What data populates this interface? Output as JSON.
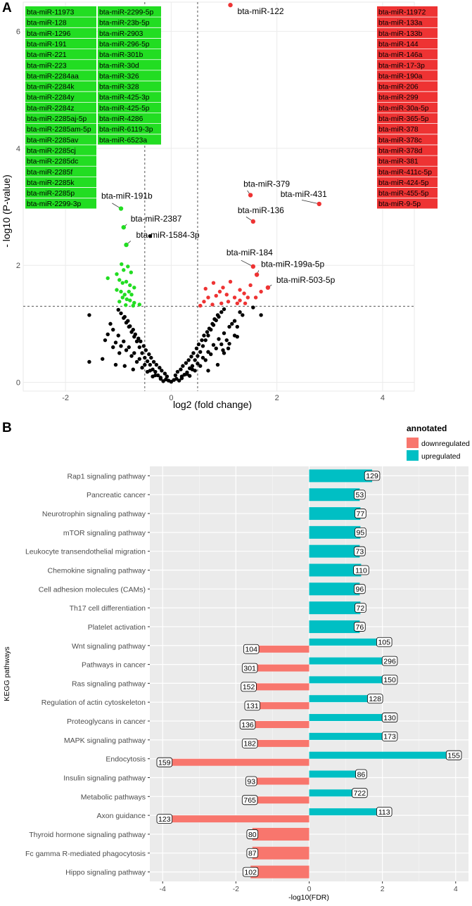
{
  "panel_a": {
    "label": "A",
    "chart_data": {
      "type": "scatter",
      "title": "",
      "xlabel": "log2 (fold change)",
      "ylabel": "- log10 (P-value)",
      "xlim": [
        -2.8,
        4.6
      ],
      "ylim": [
        -0.15,
        6.5
      ],
      "x_ticks": [
        "-2",
        "0",
        "2",
        "4"
      ],
      "x_tick_values": [
        -2,
        0,
        2,
        4
      ],
      "y_ticks": [
        "0",
        "2",
        "4",
        "6"
      ],
      "y_tick_values": [
        0,
        2,
        4,
        6
      ],
      "threshold_lines": {
        "x": [
          -0.5,
          0.5
        ],
        "y": 1.3
      },
      "colors": {
        "down": "#22dd22",
        "up": "#ee3333",
        "ns": "#000000",
        "panel_bg": "#ffffff",
        "grid": "#ebebeb"
      },
      "labeled_points": [
        {
          "name": "bta-miR-122",
          "x": 1.12,
          "y": 6.45,
          "group": "up"
        },
        {
          "name": "bta-miR-379",
          "x": 1.5,
          "y": 3.2,
          "group": "up"
        },
        {
          "name": "bta-miR-431",
          "x": 2.8,
          "y": 3.05,
          "group": "up"
        },
        {
          "name": "bta-miR-136",
          "x": 1.55,
          "y": 2.75,
          "group": "up"
        },
        {
          "name": "bta-miR-184",
          "x": 1.55,
          "y": 1.98,
          "group": "up"
        },
        {
          "name": "bta-miR-199a-5p",
          "x": 1.62,
          "y": 1.84,
          "group": "up"
        },
        {
          "name": "bta-miR-503-5p",
          "x": 1.83,
          "y": 1.62,
          "group": "up"
        },
        {
          "name": "bta-miR-191b",
          "x": -0.95,
          "y": 2.97,
          "group": "down"
        },
        {
          "name": "bta-miR-2387",
          "x": -0.9,
          "y": 2.65,
          "group": "down"
        },
        {
          "name": "bta-miR-1584-3p",
          "x": -0.85,
          "y": 2.35,
          "group": "down"
        }
      ],
      "down_points": [
        [
          -1.2,
          1.78
        ],
        [
          -1.03,
          1.85
        ],
        [
          -0.98,
          1.75
        ],
        [
          -0.92,
          1.7
        ],
        [
          -0.85,
          1.72
        ],
        [
          -0.78,
          1.66
        ],
        [
          -0.7,
          1.62
        ],
        [
          -1.03,
          1.58
        ],
        [
          -0.95,
          1.55
        ],
        [
          -0.88,
          1.5
        ],
        [
          -0.8,
          1.55
        ],
        [
          -0.75,
          1.5
        ],
        [
          -0.92,
          1.45
        ],
        [
          -0.84,
          1.42
        ],
        [
          -0.78,
          1.4
        ],
        [
          -0.7,
          1.36
        ],
        [
          -0.98,
          1.38
        ],
        [
          -0.86,
          1.32
        ],
        [
          -0.9,
          1.92
        ],
        [
          -0.82,
          1.98
        ],
        [
          -0.94,
          2.02
        ],
        [
          -0.76,
          1.88
        ],
        [
          -0.72,
          1.31
        ],
        [
          -0.6,
          1.33
        ]
      ],
      "up_points": [
        [
          0.55,
          1.31
        ],
        [
          0.62,
          1.38
        ],
        [
          0.7,
          1.45
        ],
        [
          0.78,
          1.33
        ],
        [
          0.85,
          1.48
        ],
        [
          0.92,
          1.55
        ],
        [
          0.98,
          1.62
        ],
        [
          1.05,
          1.5
        ],
        [
          1.12,
          1.72
        ],
        [
          1.2,
          1.45
        ],
        [
          1.3,
          1.58
        ],
        [
          1.38,
          1.52
        ],
        [
          1.45,
          1.45
        ],
        [
          1.25,
          1.35
        ],
        [
          1.08,
          1.38
        ],
        [
          1.5,
          1.66
        ],
        [
          1.6,
          1.45
        ],
        [
          1.7,
          1.55
        ],
        [
          0.8,
          1.7
        ],
        [
          1.3,
          1.4
        ],
        [
          0.65,
          1.6
        ],
        [
          0.95,
          1.35
        ],
        [
          1.4,
          1.35
        ]
      ],
      "ns_points": [
        [
          -0.15,
          0.02
        ],
        [
          -0.1,
          0.05
        ],
        [
          -0.05,
          0.03
        ],
        [
          0,
          0.01
        ],
        [
          0.05,
          0.04
        ],
        [
          0.1,
          0.06
        ],
        [
          0.15,
          0.03
        ],
        [
          -0.2,
          0.08
        ],
        [
          0.2,
          0.1
        ],
        [
          -0.25,
          0.12
        ],
        [
          0.25,
          0.13
        ],
        [
          -0.3,
          0.18
        ],
        [
          0.3,
          0.17
        ],
        [
          -0.35,
          0.22
        ],
        [
          0.35,
          0.24
        ],
        [
          -0.4,
          0.3
        ],
        [
          0.4,
          0.28
        ],
        [
          -0.45,
          0.36
        ],
        [
          0.45,
          0.38
        ],
        [
          -0.5,
          0.42
        ],
        [
          0.5,
          0.45
        ],
        [
          -0.55,
          0.5
        ],
        [
          0.55,
          0.52
        ],
        [
          -0.6,
          0.6
        ],
        [
          0.6,
          0.62
        ],
        [
          -0.65,
          0.7
        ],
        [
          0.65,
          0.72
        ],
        [
          -0.7,
          0.78
        ],
        [
          0.7,
          0.8
        ],
        [
          -0.75,
          0.86
        ],
        [
          0.75,
          0.9
        ],
        [
          -0.8,
          0.95
        ],
        [
          0.8,
          0.98
        ],
        [
          -0.85,
          1.02
        ],
        [
          0.85,
          1.06
        ],
        [
          -0.9,
          1.1
        ],
        [
          0.9,
          1.12
        ],
        [
          -0.95,
          1.18
        ],
        [
          0.95,
          1.2
        ],
        [
          -1.0,
          1.24
        ],
        [
          1.0,
          1.25
        ],
        [
          -0.08,
          0.1
        ],
        [
          0.08,
          0.12
        ],
        [
          -0.12,
          0.15
        ],
        [
          0.12,
          0.18
        ],
        [
          -0.18,
          0.2
        ],
        [
          0.18,
          0.22
        ],
        [
          -0.22,
          0.25
        ],
        [
          0.22,
          0.28
        ],
        [
          -0.28,
          0.3
        ],
        [
          0.28,
          0.33
        ],
        [
          -0.33,
          0.35
        ],
        [
          0.33,
          0.38
        ],
        [
          -0.38,
          0.42
        ],
        [
          0.38,
          0.44
        ],
        [
          -0.42,
          0.48
        ],
        [
          0.42,
          0.5
        ],
        [
          -0.48,
          0.55
        ],
        [
          0.48,
          0.58
        ],
        [
          -0.52,
          0.62
        ],
        [
          0.52,
          0.65
        ],
        [
          -0.58,
          0.7
        ],
        [
          0.58,
          0.72
        ],
        [
          -0.62,
          0.75
        ],
        [
          0.62,
          0.8
        ],
        [
          -0.68,
          0.82
        ],
        [
          0.68,
          0.86
        ],
        [
          -0.72,
          0.9
        ],
        [
          0.72,
          0.92
        ],
        [
          -0.78,
          0.96
        ],
        [
          0.78,
          1.0
        ],
        [
          -0.82,
          1.05
        ],
        [
          0.82,
          1.08
        ],
        [
          -0.88,
          1.12
        ],
        [
          0.88,
          1.15
        ],
        [
          -0.6,
          0.4
        ],
        [
          0.6,
          0.42
        ],
        [
          -0.7,
          0.5
        ],
        [
          0.7,
          0.52
        ],
        [
          -0.8,
          0.6
        ],
        [
          0.8,
          0.64
        ],
        [
          -0.9,
          0.7
        ],
        [
          0.9,
          0.74
        ],
        [
          -1.0,
          0.8
        ],
        [
          1.0,
          0.84
        ],
        [
          -1.1,
          0.9
        ],
        [
          1.1,
          0.95
        ],
        [
          -1.15,
          1.0
        ],
        [
          1.2,
          1.05
        ],
        [
          -0.5,
          0.3
        ],
        [
          0.5,
          0.32
        ],
        [
          -0.4,
          0.2
        ],
        [
          0.4,
          0.22
        ],
        [
          -0.3,
          0.12
        ],
        [
          0.3,
          0.14
        ],
        [
          -0.2,
          0.06
        ],
        [
          0.2,
          0.07
        ],
        [
          -0.65,
          0.35
        ],
        [
          0.65,
          0.38
        ],
        [
          -0.75,
          0.45
        ],
        [
          0.75,
          0.48
        ],
        [
          -0.85,
          0.55
        ],
        [
          0.85,
          0.58
        ],
        [
          -0.95,
          0.62
        ],
        [
          0.95,
          0.65
        ],
        [
          -1.05,
          0.68
        ],
        [
          1.05,
          0.72
        ],
        [
          -1.25,
          0.72
        ],
        [
          1.25,
          0.78
        ],
        [
          -0.55,
          0.25
        ],
        [
          0.55,
          0.28
        ],
        [
          -0.45,
          0.18
        ],
        [
          0.45,
          0.2
        ],
        [
          -0.35,
          0.1
        ],
        [
          0.35,
          0.11
        ],
        [
          -1.2,
          0.82
        ],
        [
          1.15,
          1.0
        ],
        [
          -1.3,
          0.4
        ],
        [
          1.3,
          1.2
        ],
        [
          -1.05,
          0.3
        ],
        [
          1.08,
          0.58
        ],
        [
          -0.98,
          0.5
        ],
        [
          0.98,
          0.55
        ],
        [
          -1.1,
          0.6
        ],
        [
          1.1,
          0.66
        ],
        [
          1.25,
          0.95
        ],
        [
          1.35,
          1.15
        ],
        [
          -0.4,
          2.5
        ],
        [
          -1.55,
          1.15
        ],
        [
          1.2,
          0.8
        ],
        [
          1.0,
          0.5
        ],
        [
          0.88,
          0.3
        ],
        [
          0.7,
          0.2
        ],
        [
          -0.88,
          0.28
        ],
        [
          -0.72,
          0.22
        ],
        [
          1.7,
          1.15
        ],
        [
          -1.55,
          0.35
        ],
        [
          1.55,
          1.28
        ]
      ],
      "legend_down": [
        [
          "bta-miR-11973",
          "bta-miR-128",
          "bta-miR-1296",
          "bta-miR-191",
          "bta-miR-221",
          "bta-miR-223",
          "bta-miR-2284aa",
          "bta-miR-2284k",
          "bta-miR-2284y",
          "bta-miR-2284z",
          "bta-miR-2285aj-5p",
          "bta-miR-2285am-5p",
          "bta-miR-2285av",
          "bta-miR-2285cj",
          "bta-miR-2285dc",
          "bta-miR-2285f",
          "bta-miR-2285k",
          "bta-miR-2285p",
          "bta-miR-2299-3p"
        ],
        [
          "bta-miR-2299-5p",
          "bta-miR-23b-5p",
          "bta-miR-2903",
          "bta-miR-296-5p",
          "bta-miR-301b",
          "bta-miR-30d",
          "bta-miR-326",
          "bta-miR-328",
          "bta-miR-425-3p",
          "bta-miR-425-5p",
          "bta-miR-4286",
          "bta-miR-6119-3p",
          "bta-miR-6523a"
        ]
      ],
      "legend_up": [
        "bta-miR-11972",
        "bta-miR-133a",
        "bta-miR-133b",
        "bta-miR-144",
        "bta-miR-146a",
        "bta-miR-17-3p",
        "bta-miR-190a",
        "bta-miR-206",
        "bta-miR-299",
        "bta-miR-30a-5p",
        "bta-miR-365-5p",
        "bta-miR-378",
        "bta-miR-378c",
        "bta-miR-378d",
        "bta-miR-381",
        "bta-miR-411c-5p",
        "bta-miR-424-5p",
        "bta-miR-455-5p",
        "bta-miR-9-5p"
      ]
    }
  },
  "panel_b": {
    "label": "B",
    "chart_data": {
      "type": "bar",
      "orientation": "horizontal",
      "title": "",
      "xlabel": "-log10(FDR)",
      "ylabel": "KEGG pathways",
      "xlim": [
        -4.35,
        4.35
      ],
      "x_ticks": [
        "-4",
        "-2",
        "0",
        "2",
        "4"
      ],
      "x_tick_values": [
        -4,
        -2,
        0,
        2,
        4
      ],
      "legend_title": "annotated",
      "colors": {
        "downregulated": "#f8766d",
        "upregulated": "#00bfc4",
        "panel_bg": "#ebebeb"
      },
      "categories": [
        "Rap1 signaling pathway",
        "Pancreatic cancer",
        "Neurotrophin signaling pathway",
        "mTOR signaling pathway",
        "Leukocyte transendothelial migration",
        "Chemokine signaling pathway",
        "Cell adhesion molecules (CAMs)",
        "Th17 cell differentiation",
        "Platelet activation",
        "Wnt signaling pathway",
        "Pathways in cancer",
        "Ras signaling pathway",
        "Regulation of actin cytoskeleton",
        "Proteoglycans in cancer",
        "MAPK signaling pathway",
        "Endocytosis",
        "Insulin signaling pathway",
        "Metabolic pathways",
        "Axon guidance",
        "Thyroid hormone signaling pathway",
        "Fc gamma R-mediated phagocytosis",
        "Hippo signaling pathway"
      ],
      "series": [
        {
          "name": "downregulated",
          "values": [
            null,
            null,
            null,
            null,
            null,
            null,
            null,
            null,
            null,
            -1.58,
            -1.62,
            -1.65,
            -1.55,
            -1.68,
            -1.62,
            -3.95,
            -1.58,
            -1.62,
            -3.95,
            -1.55,
            -1.55,
            -1.6
          ],
          "labels": [
            null,
            null,
            null,
            null,
            null,
            null,
            null,
            null,
            null,
            "104",
            "301",
            "152",
            "131",
            "136",
            "182",
            "159",
            "93",
            "765",
            "123",
            "80",
            "87",
            "102"
          ]
        },
        {
          "name": "upregulated",
          "values": [
            1.72,
            1.38,
            1.4,
            1.4,
            1.38,
            1.42,
            1.38,
            1.4,
            1.38,
            2.05,
            2.2,
            2.2,
            1.8,
            2.2,
            2.2,
            3.95,
            1.42,
            1.38,
            2.05,
            null,
            null,
            null
          ],
          "labels": [
            "129",
            "53",
            "77",
            "95",
            "73",
            "110",
            "96",
            "72",
            "76",
            "105",
            "296",
            "150",
            "128",
            "130",
            "173",
            "155",
            "86",
            "722",
            "113",
            null,
            null,
            null
          ]
        }
      ]
    }
  }
}
